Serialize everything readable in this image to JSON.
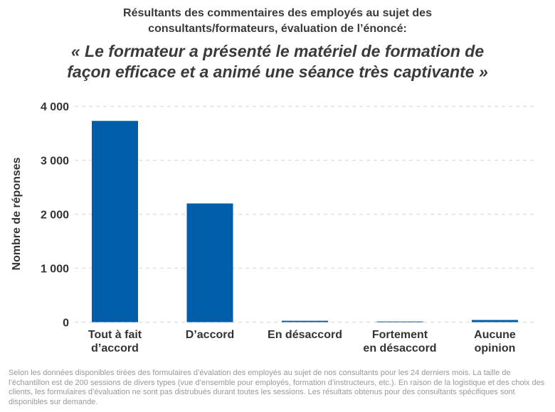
{
  "chart_data": {
    "type": "bar",
    "supertitle_lines": [
      "Résultants des commentaires des employés au sujet des",
      "consultants/formateurs, évaluation de l’énoncé:"
    ],
    "title_lines": [
      "« Le formateur a présenté le matériel de formation de",
      "façon efficace et a animé une séance très captivante »"
    ],
    "ylabel": "Nombre de réponses",
    "xlabel": "",
    "ylim": [
      0,
      4000
    ],
    "yticks": [
      0,
      1000,
      2000,
      3000,
      4000
    ],
    "ytick_labels": [
      "0",
      "1 000",
      "2 000",
      "3 000",
      "4 000"
    ],
    "grid": "horizontal dashed",
    "categories": [
      [
        "Tout à fait",
        "d’accord"
      ],
      [
        "D’accord"
      ],
      [
        "En désaccord"
      ],
      [
        "Fortement",
        "en désaccord"
      ],
      [
        "Aucune",
        "opinion"
      ]
    ],
    "values": [
      3730,
      2200,
      25,
      12,
      40
    ],
    "bar_color": "#005DAA"
  },
  "footnote": "Selon les données disponibles tirées des formulaires d’évalation des employés au sujet de nos consultants pour les 24 derniers mois. La taille de l’échantillon est de 200 sessions de divers types (vue d’ensemble pour employés, formation d’instructeurs, etc.). En raison de la logistique et des choix des clients, les formulaires d’évaluation ne sont pas distrubués durant toutes les sessions. Les résultats obtenus pour des consultants spécifiques sont disponibles sur demande."
}
